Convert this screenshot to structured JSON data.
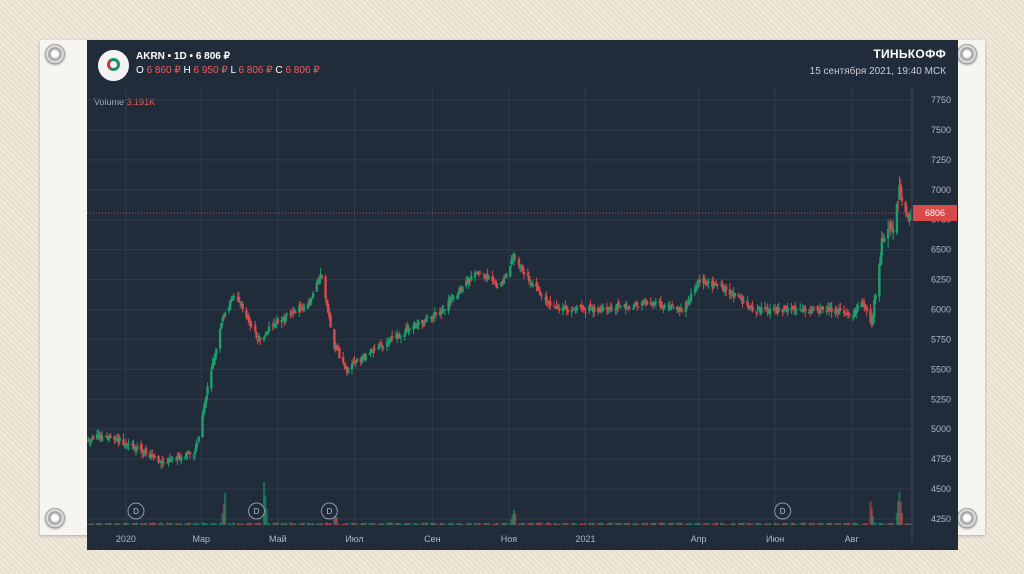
{
  "header": {
    "ticker": "AKRN",
    "interval": "1D",
    "price": "6 806 ₽",
    "ohlc": {
      "o_label": "O",
      "o_value": "6 860 ₽",
      "h_label": "H",
      "h_value": "6 950 ₽",
      "l_label": "L",
      "l_value": "6 806 ₽",
      "c_label": "C",
      "c_value": "6 806 ₽"
    },
    "brand": "ТИНЬКОФФ",
    "date": "15 сентября 2021, 19:40 МСК"
  },
  "volume": {
    "label": "Volume",
    "value": "3.191K"
  },
  "colors": {
    "background": "#212c3b",
    "grid": "#303b4a",
    "up": "#1f9d6c",
    "down": "#d84a4a",
    "current_price": "#d84a4a"
  },
  "chart_data": {
    "type": "candlestick",
    "title": "",
    "x_tick_labels": [
      "2020",
      "Мар",
      "Май",
      "Июл",
      "Сен",
      "Ноя",
      "2021",
      "Апр",
      "Июн",
      "Авг"
    ],
    "x_tick_dates": [
      "2020-01-01",
      "2020-03-01",
      "2020-05-01",
      "2020-07-01",
      "2020-09-01",
      "2020-11-01",
      "2021-01-01",
      "2021-04-01",
      "2021-06-01",
      "2021-08-01"
    ],
    "y_tick_labels": [
      "4250",
      "4500",
      "4750",
      "5000",
      "5250",
      "5500",
      "5750",
      "6000",
      "6250",
      "6500",
      "6750",
      "7000",
      "7250",
      "7500",
      "7750"
    ],
    "yticks": [
      4250,
      4500,
      4750,
      5000,
      5250,
      5500,
      5750,
      6000,
      6250,
      6500,
      6750,
      7000,
      7250,
      7500,
      7750
    ],
    "ylim": [
      4200,
      7850
    ],
    "xlim": [
      "2019-12-01",
      "2021-09-18"
    ],
    "current_price": 6806,
    "current_price_label": "6806",
    "grid": true,
    "dividend_marker_label": "D",
    "dividend_dates": [
      "2020-01-09",
      "2020-04-14",
      "2020-06-11",
      "2021-06-07"
    ],
    "price_path": [
      {
        "date": "2019-12-01",
        "value": 4920
      },
      {
        "date": "2019-12-20",
        "value": 4950
      },
      {
        "date": "2020-01-08",
        "value": 4850
      },
      {
        "date": "2020-02-01",
        "value": 4720
      },
      {
        "date": "2020-02-25",
        "value": 4800
      },
      {
        "date": "2020-03-05",
        "value": 5300
      },
      {
        "date": "2020-03-17",
        "value": 5900
      },
      {
        "date": "2020-03-28",
        "value": 6150
      },
      {
        "date": "2020-04-15",
        "value": 5750
      },
      {
        "date": "2020-05-01",
        "value": 5900
      },
      {
        "date": "2020-05-26",
        "value": 6050
      },
      {
        "date": "2020-06-04",
        "value": 6300
      },
      {
        "date": "2020-06-15",
        "value": 5700
      },
      {
        "date": "2020-06-25",
        "value": 5500
      },
      {
        "date": "2020-07-15",
        "value": 5650
      },
      {
        "date": "2020-08-15",
        "value": 5850
      },
      {
        "date": "2020-09-10",
        "value": 6000
      },
      {
        "date": "2020-10-05",
        "value": 6300
      },
      {
        "date": "2020-10-25",
        "value": 6200
      },
      {
        "date": "2020-11-05",
        "value": 6450
      },
      {
        "date": "2020-11-20",
        "value": 6200
      },
      {
        "date": "2020-12-10",
        "value": 6000
      },
      {
        "date": "2021-01-10",
        "value": 6000
      },
      {
        "date": "2021-02-20",
        "value": 6050
      },
      {
        "date": "2021-03-20",
        "value": 6000
      },
      {
        "date": "2021-04-03",
        "value": 6250
      },
      {
        "date": "2021-04-25",
        "value": 6150
      },
      {
        "date": "2021-05-15",
        "value": 6000
      },
      {
        "date": "2021-06-10",
        "value": 6000
      },
      {
        "date": "2021-07-15",
        "value": 6000
      },
      {
        "date": "2021-07-20",
        "value": 6000
      },
      {
        "date": "2021-08-01",
        "value": 5950
      },
      {
        "date": "2021-08-10",
        "value": 6050
      },
      {
        "date": "2021-08-17",
        "value": 5900
      },
      {
        "date": "2021-08-25",
        "value": 6550
      },
      {
        "date": "2021-09-03",
        "value": 6700
      },
      {
        "date": "2021-09-08",
        "value": 7000
      },
      {
        "date": "2021-09-15",
        "value": 6806
      }
    ],
    "volume_spikes": [
      {
        "date": "2020-03-20",
        "value": 3.0
      },
      {
        "date": "2020-04-20",
        "value": 4.1
      },
      {
        "date": "2020-06-15",
        "value": 1.6
      },
      {
        "date": "2020-11-05",
        "value": 1.4
      },
      {
        "date": "2021-08-16",
        "value": 2.2
      },
      {
        "date": "2021-09-08",
        "value": 3.2
      }
    ]
  }
}
